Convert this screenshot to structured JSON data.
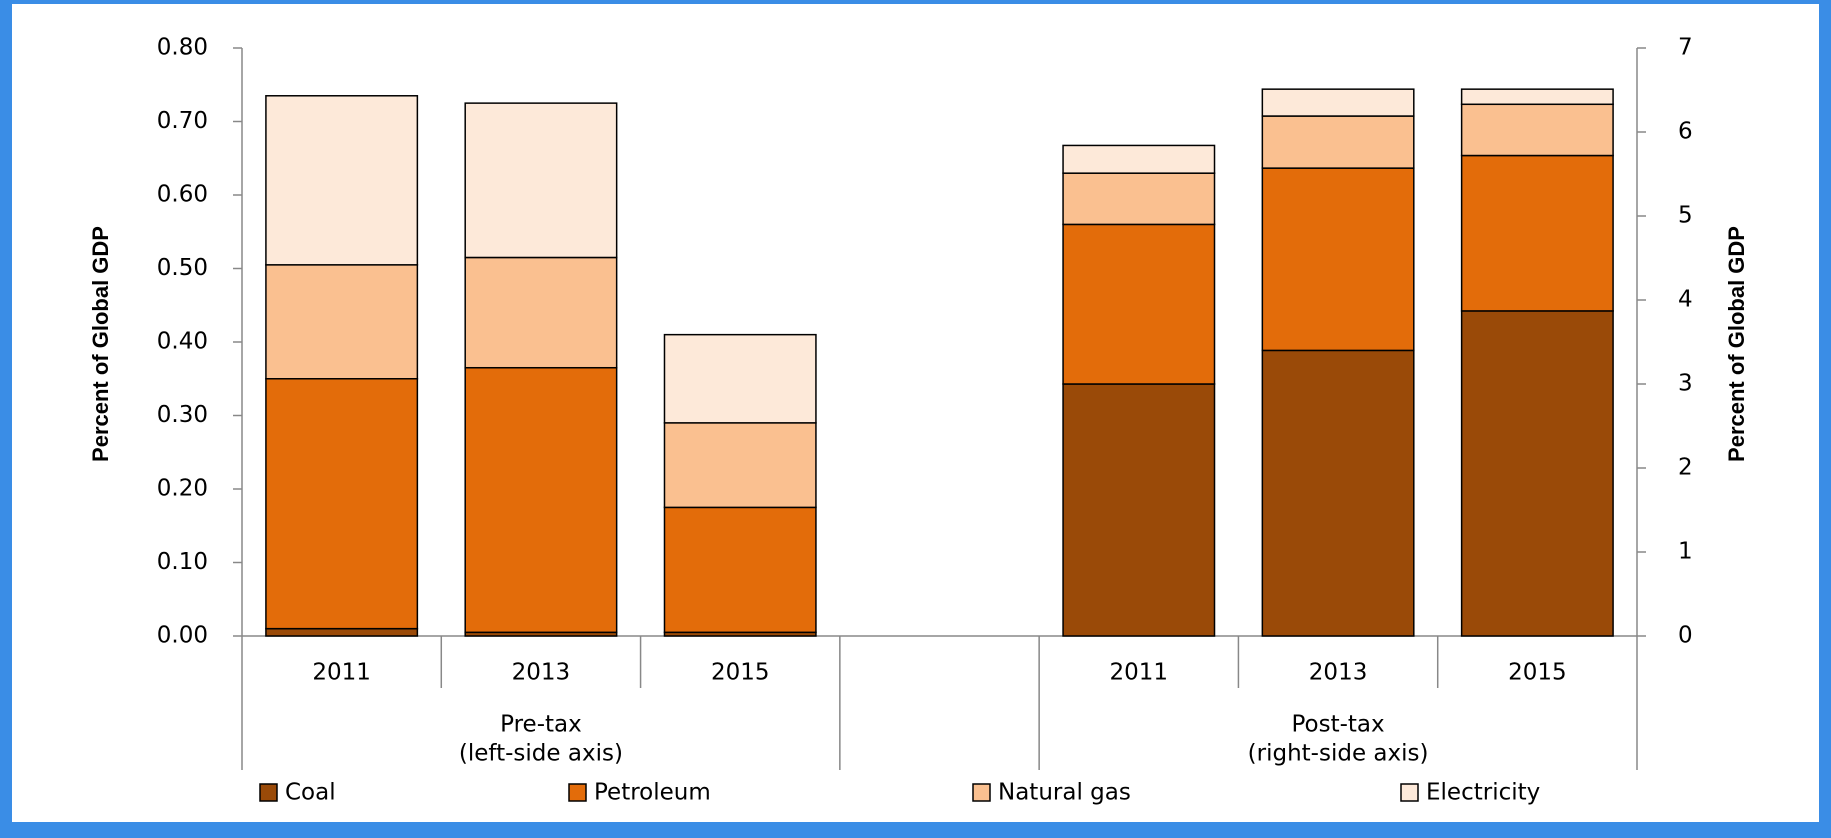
{
  "chart_data": {
    "type": "bar",
    "stacked": true,
    "categories": [
      "2011",
      "2013",
      "2015",
      null,
      "2011",
      "2013",
      "2015"
    ],
    "groups": [
      {
        "label": "Pre-tax",
        "sublabel": "(left-side axis)"
      },
      {
        "label": "Post-tax",
        "sublabel": "(right-side axis)"
      }
    ],
    "ylabel": "Percent of Global GDP",
    "y2label": "Percent of Global GDP",
    "ylim": [
      0,
      0.8
    ],
    "yticks": [
      {
        "value": 0,
        "label": "0.00"
      },
      {
        "value": 0.1,
        "label": "0.10"
      },
      {
        "value": 0.2,
        "label": "0.20"
      },
      {
        "value": 0.3,
        "label": "0.30"
      },
      {
        "value": 0.4,
        "label": "0.40"
      },
      {
        "value": 0.5,
        "label": "0.50"
      },
      {
        "value": 0.6,
        "label": "0.60"
      },
      {
        "value": 0.7,
        "label": "0.70"
      },
      {
        "value": 0.8,
        "label": "0.80"
      }
    ],
    "y2lim": [
      0,
      7
    ],
    "y2ticks": [
      0,
      1,
      2,
      3,
      4,
      5,
      6,
      7
    ],
    "legend": "bottom",
    "series": [
      {
        "name": "Coal",
        "color": "#9a4a08",
        "values": [
          0.01,
          0.005,
          0.005,
          null,
          null,
          null,
          null
        ],
        "values_y2": [
          null,
          null,
          null,
          null,
          3.0,
          3.4,
          3.87
        ]
      },
      {
        "name": "Petroleum",
        "color": "#e36c0a",
        "values": [
          0.34,
          0.36,
          0.17,
          null,
          null,
          null,
          null
        ],
        "values_y2": [
          null,
          null,
          null,
          null,
          1.9,
          2.17,
          1.85
        ]
      },
      {
        "name": "Natural gas",
        "color": "#fac090",
        "values": [
          0.155,
          0.15,
          0.115,
          null,
          null,
          null,
          null
        ],
        "values_y2": [
          null,
          null,
          null,
          null,
          0.61,
          0.62,
          0.61
        ]
      },
      {
        "name": "Electricity",
        "color": "#fde9d9",
        "values": [
          0.23,
          0.21,
          0.12,
          null,
          null,
          null,
          null
        ],
        "values_y2": [
          null,
          null,
          null,
          null,
          0.33,
          0.32,
          0.18
        ]
      }
    ]
  }
}
